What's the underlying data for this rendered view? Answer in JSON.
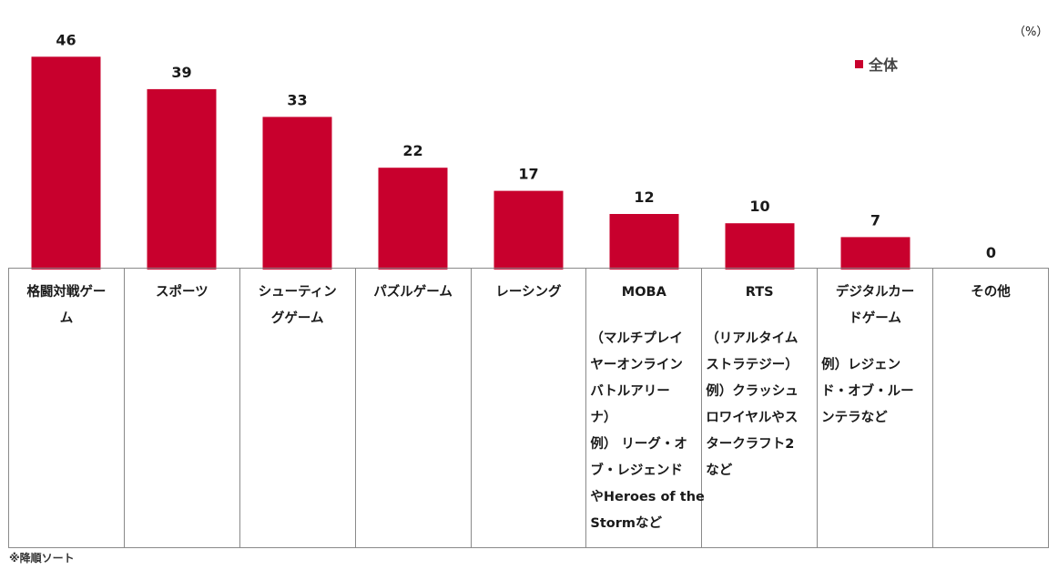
{
  "unit_label": "（%）",
  "colors": {
    "bar": "#c8002d",
    "text": "#1a1a1a",
    "border": "#8a8a8a"
  },
  "chart_data": {
    "type": "bar",
    "categories": [
      "格闘対戦ゲーム",
      "スポーツ",
      "シューティングゲーム",
      "パズルゲーム",
      "レーシング",
      "MOBA",
      "RTS",
      "デジタルカードゲーム",
      "その他"
    ],
    "series": [
      {
        "name": "全体",
        "values": [
          46,
          39,
          33,
          22,
          17,
          12,
          10,
          7,
          0
        ]
      }
    ],
    "ylim": [
      0,
      50
    ],
    "grid": false,
    "legend_position": "top-right",
    "sort": "descending"
  },
  "table": {
    "names": [
      [
        "格闘対戦ゲー",
        "ム"
      ],
      [
        "スポーツ"
      ],
      [
        "シューティン",
        "グゲーム"
      ],
      [
        "パズルゲーム"
      ],
      [
        "レーシング"
      ],
      [
        "MOBA"
      ],
      [
        "RTS"
      ],
      [
        "デジタルカー",
        "ドゲーム"
      ],
      [
        "その他"
      ]
    ],
    "notes": [
      [],
      [],
      [],
      [],
      [],
      [
        "（マルチプレイ",
        "ヤーオンライン",
        "バトルアリー",
        "ナ）",
        "例） リーグ・オ",
        "ブ・レジェンド",
        "やHeroes of the",
        "Stormなど"
      ],
      [
        "（リアルタイム",
        "ストラテジー）",
        "例）クラッシュ",
        "ロワイヤルやス",
        "タークラフト2",
        "など"
      ],
      [
        "例）レジェン",
        "ド・オブ・ルー",
        "ンテラなど"
      ],
      []
    ]
  },
  "footnote": "※降順ソート"
}
